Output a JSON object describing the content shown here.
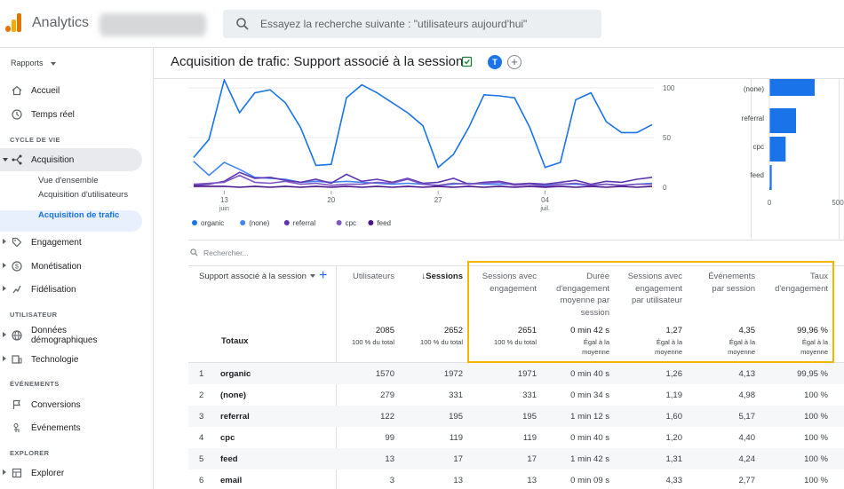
{
  "app": {
    "title": "Analytics",
    "search_placeholder": "Essayez la recherche suivante : \"utilisateurs aujourd'hui\""
  },
  "sidebar": {
    "reports_label": "Rapports",
    "items": {
      "accueil": "Accueil",
      "temps_reel": "Temps réel",
      "section_cycle": "CYCLE DE VIE",
      "acquisition": "Acquisition",
      "vue_ensemble": "Vue d'ensemble",
      "acq_utilisateurs": "Acquisition d'utilisateurs",
      "acq_trafic": "Acquisition de trafic",
      "engagement": "Engagement",
      "monetisation": "Monétisation",
      "fidelisation": "Fidélisation",
      "section_utilisateur": "UTILISATEUR",
      "donnees_demo": "Données démographiques",
      "technologie": "Technologie",
      "section_evenements": "ÉVÉNEMENTS",
      "conversions": "Conversions",
      "evenements": "Événements",
      "section_explorer": "EXPLORER",
      "explorer": "Explorer"
    }
  },
  "page": {
    "title": "Acquisition de trafic: Support associé à la session",
    "avatar_letter": "T"
  },
  "chart_data": [
    {
      "type": "line",
      "x_ticks": [
        {
          "label": "13",
          "sub": "juin",
          "i": 2
        },
        {
          "label": "20",
          "sub": "",
          "i": 9
        },
        {
          "label": "27",
          "sub": "",
          "i": 16
        },
        {
          "label": "04",
          "sub": "juil.",
          "i": 23
        }
      ],
      "y_ticks": [
        "100",
        "50",
        "0"
      ],
      "ylim": [
        0,
        100
      ],
      "series": [
        {
          "name": "organic",
          "color": "#1a73e8",
          "values": [
            30,
            48,
            108,
            75,
            95,
            98,
            85,
            60,
            22,
            23,
            90,
            103,
            95,
            85,
            75,
            62,
            20,
            33,
            60,
            93,
            92,
            90,
            60,
            20,
            25,
            88,
            95,
            66,
            55,
            55,
            63
          ]
        },
        {
          "name": "(none)",
          "color": "#4285f4",
          "values": [
            26,
            12,
            25,
            18,
            10,
            9,
            8,
            5,
            6,
            5,
            6,
            5,
            4,
            3,
            4,
            3,
            2,
            3,
            4,
            3,
            3,
            3,
            3,
            2,
            3,
            3,
            2,
            3,
            2,
            3,
            4
          ]
        },
        {
          "name": "referral",
          "color": "#5e35b1",
          "values": [
            2,
            3,
            6,
            15,
            9,
            10,
            7,
            5,
            8,
            4,
            13,
            6,
            8,
            5,
            9,
            4,
            5,
            9,
            3,
            5,
            6,
            3,
            4,
            3,
            5,
            7,
            3,
            6,
            5,
            8,
            10
          ]
        },
        {
          "name": "cpc",
          "color": "#7e57c2",
          "values": [
            3,
            4,
            5,
            12,
            5,
            4,
            6,
            3,
            4,
            2,
            3,
            3,
            5,
            4,
            8,
            3,
            2,
            4,
            3,
            4,
            5,
            2,
            3,
            1,
            3,
            4,
            2,
            3,
            2,
            3,
            3
          ]
        },
        {
          "name": "feed",
          "color": "#4a148c",
          "values": [
            1,
            1,
            1,
            0,
            1,
            0,
            1,
            0,
            1,
            0,
            1,
            0,
            1,
            0,
            1,
            0,
            1,
            0,
            1,
            0,
            1,
            0,
            1,
            0,
            1,
            0,
            1,
            0,
            1,
            0,
            1
          ]
        }
      ]
    },
    {
      "type": "bar",
      "orientation": "horizontal",
      "categories": [
        "(none)",
        "referral",
        "cpc",
        "feed"
      ],
      "values": [
        331,
        195,
        119,
        17
      ],
      "x_ticks": [
        "0",
        "500"
      ],
      "xlim": [
        0,
        500
      ],
      "color": "#1a73e8"
    }
  ],
  "table": {
    "search_placeholder": "Rechercher...",
    "dimension_header": "Support associé à la session",
    "headers": {
      "users": "Utilisateurs",
      "sessions": "↓Sessions",
      "engaged": "Sessions avec\nengagement",
      "duration": "Durée\nd'engagement\nmoyenne par\nsession",
      "engaged_per_user": "Sessions avec\nengagement\npar utilisateur",
      "events": "Événements\npar session",
      "rate": "Taux\nd'engagement"
    },
    "totals_label": "Totaux",
    "totals": {
      "users": "2085",
      "users_sub": "100 % du total",
      "sessions": "2652",
      "sessions_sub": "100 % du total",
      "engaged": "2651",
      "engaged_sub": "100 % du total",
      "duration": "0 min 42 s",
      "duration_sub": "Égal à la\nmoyenne",
      "engaged_per_user": "1,27",
      "engaged_per_user_sub": "Égal à la\nmoyenne",
      "events": "4,35",
      "events_sub": "Égal à la\nmoyenne",
      "rate": "99,96 %",
      "rate_sub": "Égal à la\nmoyenne"
    },
    "rows": [
      {
        "idx": "1",
        "dim": "organic",
        "users": "1570",
        "sessions": "1972",
        "engaged": "1971",
        "duration": "0 min 40 s",
        "epu": "1,26",
        "events": "4,13",
        "rate": "99,95 %"
      },
      {
        "idx": "2",
        "dim": "(none)",
        "users": "279",
        "sessions": "331",
        "engaged": "331",
        "duration": "0 min 34 s",
        "epu": "1,19",
        "events": "4,98",
        "rate": "100 %"
      },
      {
        "idx": "3",
        "dim": "referral",
        "users": "122",
        "sessions": "195",
        "engaged": "195",
        "duration": "1 min 12 s",
        "epu": "1,60",
        "events": "5,17",
        "rate": "100 %"
      },
      {
        "idx": "4",
        "dim": "cpc",
        "users": "99",
        "sessions": "119",
        "engaged": "119",
        "duration": "0 min 40 s",
        "epu": "1,20",
        "events": "4,40",
        "rate": "100 %"
      },
      {
        "idx": "5",
        "dim": "feed",
        "users": "13",
        "sessions": "17",
        "engaged": "17",
        "duration": "1 min 42 s",
        "epu": "1,31",
        "events": "4,24",
        "rate": "100 %"
      },
      {
        "idx": "6",
        "dim": "email",
        "users": "3",
        "sessions": "13",
        "engaged": "13",
        "duration": "0 min 09 s",
        "epu": "4,33",
        "events": "2,77",
        "rate": "100 %"
      }
    ]
  }
}
